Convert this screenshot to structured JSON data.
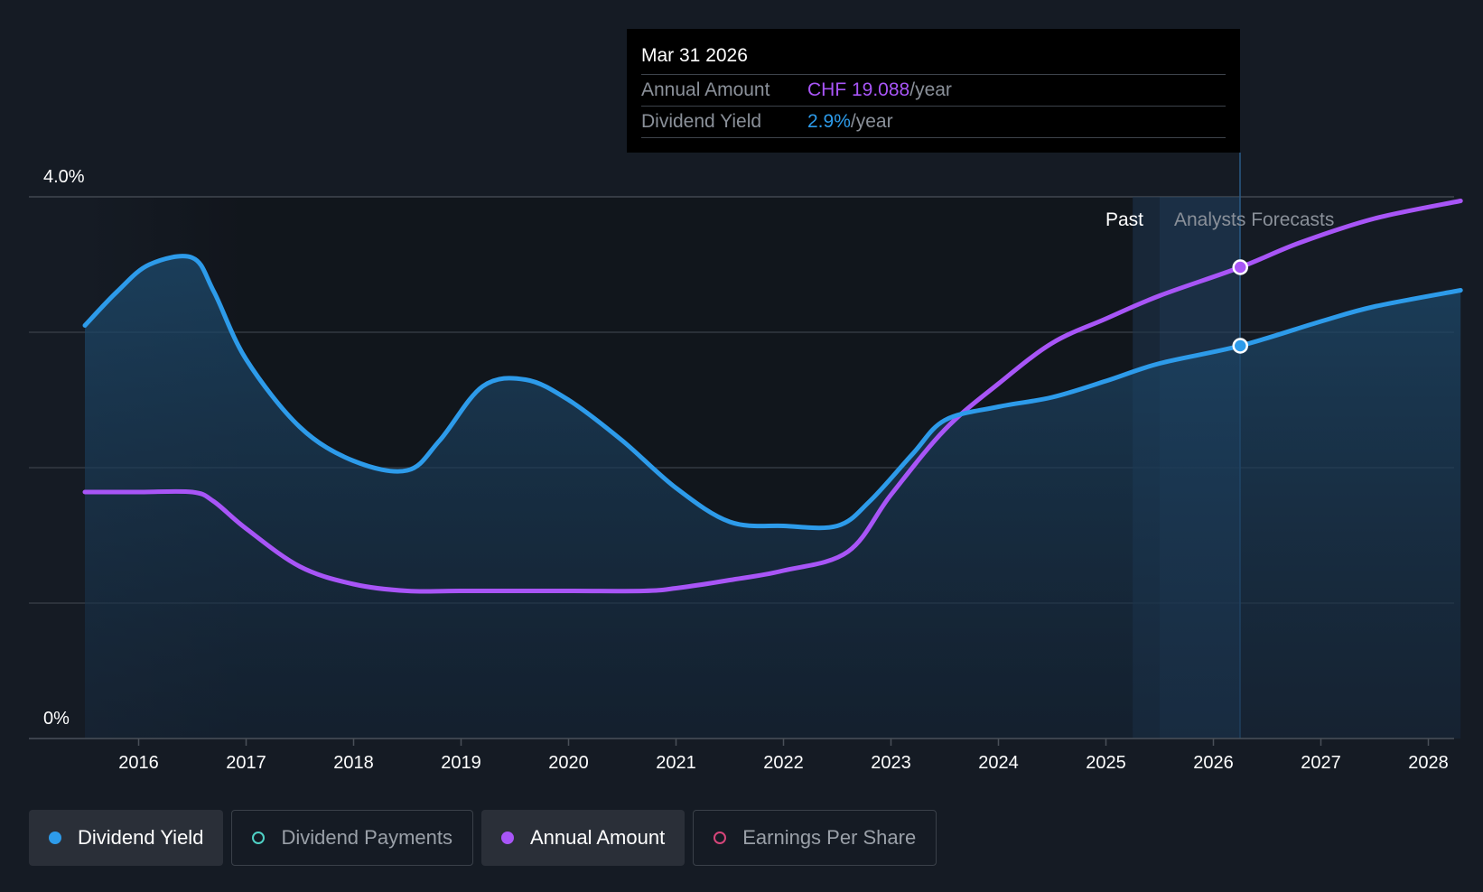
{
  "chart_data": {
    "type": "line",
    "y_axis": {
      "ticks": [
        "4.0%",
        "0%"
      ],
      "ylim": [
        0,
        4.0
      ],
      "unit": "%"
    },
    "x_axis": {
      "ticks": [
        "2016",
        "2017",
        "2018",
        "2019",
        "2020",
        "2021",
        "2022",
        "2023",
        "2024",
        "2025",
        "2026",
        "2027",
        "2028"
      ]
    },
    "region_labels": {
      "past": "Past",
      "forecast": "Analysts Forecasts"
    },
    "series": [
      {
        "name": "Dividend Yield",
        "color": "#2d9bea",
        "area": true,
        "points": [
          [
            2015.5,
            3.05
          ],
          [
            2015.8,
            3.3
          ],
          [
            2016.1,
            3.5
          ],
          [
            2016.5,
            3.55
          ],
          [
            2016.7,
            3.3
          ],
          [
            2017.0,
            2.8
          ],
          [
            2017.5,
            2.3
          ],
          [
            2018.0,
            2.05
          ],
          [
            2018.5,
            1.98
          ],
          [
            2018.8,
            2.2
          ],
          [
            2019.2,
            2.6
          ],
          [
            2019.6,
            2.65
          ],
          [
            2020.0,
            2.5
          ],
          [
            2020.5,
            2.2
          ],
          [
            2021.0,
            1.85
          ],
          [
            2021.5,
            1.6
          ],
          [
            2022.0,
            1.57
          ],
          [
            2022.5,
            1.57
          ],
          [
            2022.8,
            1.75
          ],
          [
            2023.2,
            2.1
          ],
          [
            2023.5,
            2.35
          ],
          [
            2024.0,
            2.45
          ],
          [
            2024.5,
            2.52
          ],
          [
            2025.0,
            2.64
          ],
          [
            2025.5,
            2.77
          ],
          [
            2026.25,
            2.9
          ],
          [
            2027.0,
            3.08
          ],
          [
            2027.5,
            3.19
          ],
          [
            2028.3,
            3.31
          ]
        ],
        "highlight": [
          2026.25,
          2.9
        ]
      },
      {
        "name": "Annual Amount",
        "color": "#a855f7",
        "area": false,
        "points": [
          [
            2015.5,
            1.82
          ],
          [
            2016.0,
            1.82
          ],
          [
            2016.5,
            1.82
          ],
          [
            2016.7,
            1.75
          ],
          [
            2017.0,
            1.55
          ],
          [
            2017.5,
            1.27
          ],
          [
            2018.0,
            1.14
          ],
          [
            2018.5,
            1.09
          ],
          [
            2019.0,
            1.09
          ],
          [
            2020.0,
            1.09
          ],
          [
            2020.7,
            1.09
          ],
          [
            2021.0,
            1.11
          ],
          [
            2021.5,
            1.17
          ],
          [
            2022.0,
            1.24
          ],
          [
            2022.6,
            1.38
          ],
          [
            2023.0,
            1.8
          ],
          [
            2023.5,
            2.28
          ],
          [
            2024.0,
            2.62
          ],
          [
            2024.5,
            2.92
          ],
          [
            2025.0,
            3.1
          ],
          [
            2025.5,
            3.27
          ],
          [
            2026.25,
            3.48
          ],
          [
            2026.8,
            3.66
          ],
          [
            2027.5,
            3.84
          ],
          [
            2028.3,
            3.97
          ]
        ],
        "highlight": [
          2026.25,
          3.48
        ]
      }
    ]
  },
  "tooltip": {
    "date": "Mar 31 2026",
    "rows": [
      {
        "label": "Annual Amount",
        "value": "CHF 19.088",
        "unit": "/year"
      },
      {
        "label": "Dividend Yield",
        "value": "2.9%",
        "unit": "/year"
      }
    ]
  },
  "legend": [
    {
      "label": "Dividend Yield",
      "color": "#2d9bea",
      "active": true
    },
    {
      "label": "Dividend Payments",
      "color": "#4fd1c5",
      "active": false
    },
    {
      "label": "Annual Amount",
      "color": "#a855f7",
      "active": true
    },
    {
      "label": "Earnings Per Share",
      "color": "#d6457a",
      "active": false
    }
  ]
}
